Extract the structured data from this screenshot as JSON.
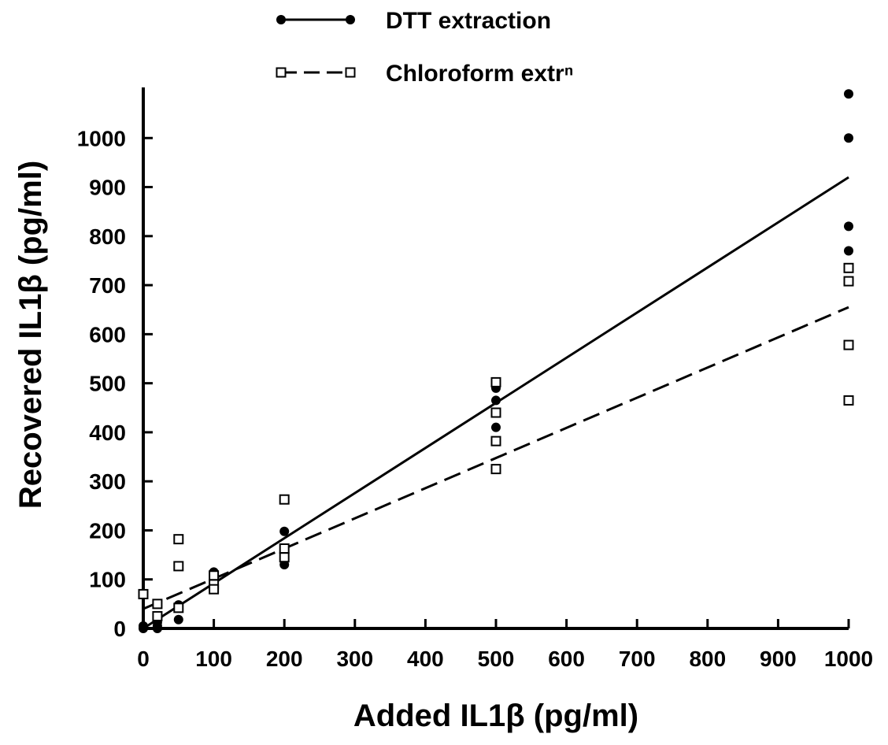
{
  "chart_data": {
    "type": "scatter",
    "title": "",
    "xlabel": "Added IL1β (pg/ml)",
    "ylabel": "Recovered IL1β (pg/ml)",
    "xlim": [
      0,
      1000
    ],
    "ylim": [
      0,
      1100
    ],
    "x_ticks": [
      0,
      100,
      200,
      300,
      400,
      500,
      600,
      700,
      800,
      900,
      1000
    ],
    "y_ticks": [
      0,
      100,
      200,
      300,
      400,
      500,
      600,
      700,
      800,
      900,
      1000
    ],
    "grid": false,
    "legend_position": "top-center",
    "series": [
      {
        "name": "DTT extraction",
        "marker": "filled-circle",
        "line_style": "solid",
        "color": "#000000",
        "points": [
          [
            0,
            0
          ],
          [
            0,
            5
          ],
          [
            20,
            5
          ],
          [
            20,
            12
          ],
          [
            20,
            0
          ],
          [
            50,
            48
          ],
          [
            50,
            18
          ],
          [
            100,
            115
          ],
          [
            100,
            110
          ],
          [
            100,
            105
          ],
          [
            100,
            95
          ],
          [
            200,
            198
          ],
          [
            200,
            150
          ],
          [
            200,
            140
          ],
          [
            200,
            130
          ],
          [
            500,
            495
          ],
          [
            500,
            490
          ],
          [
            500,
            465
          ],
          [
            500,
            410
          ],
          [
            1000,
            1090
          ],
          [
            1000,
            1000
          ],
          [
            1000,
            820
          ],
          [
            1000,
            770
          ]
        ],
        "fit": {
          "x": [
            0,
            1000
          ],
          "y": [
            -20,
            920
          ]
        }
      },
      {
        "name": "Chloroform extrⁿ",
        "marker": "open-square",
        "line_style": "dashed",
        "color": "#000000",
        "points": [
          [
            0,
            70
          ],
          [
            20,
            50
          ],
          [
            20,
            25
          ],
          [
            50,
            182
          ],
          [
            50,
            127
          ],
          [
            50,
            42
          ],
          [
            100,
            108
          ],
          [
            100,
            90
          ],
          [
            100,
            80
          ],
          [
            200,
            263
          ],
          [
            200,
            163
          ],
          [
            200,
            145
          ],
          [
            500,
            502
          ],
          [
            500,
            440
          ],
          [
            500,
            382
          ],
          [
            500,
            325
          ],
          [
            1000,
            735
          ],
          [
            1000,
            708
          ],
          [
            1000,
            578
          ],
          [
            1000,
            465
          ]
        ],
        "fit": {
          "x": [
            0,
            1000
          ],
          "y": [
            40,
            655
          ]
        }
      }
    ]
  }
}
